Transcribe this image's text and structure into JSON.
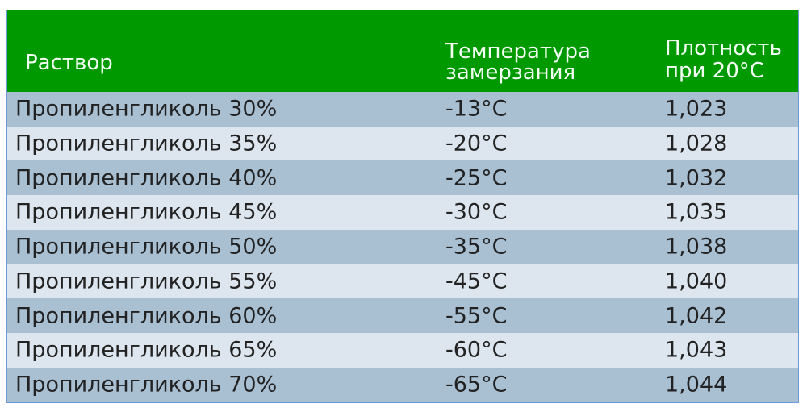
{
  "table": {
    "header_color": "#009a00",
    "row_colors": [
      "#a9bfd2",
      "#dde6ee"
    ],
    "columns": [
      {
        "line1": "Раствор",
        "line2": ""
      },
      {
        "line1": "Температура",
        "line2": "замерзания"
      },
      {
        "line1": "Плотность",
        "line2": "при 20°C"
      }
    ],
    "rows": [
      [
        "Пропиленгликоль 30%",
        "-13°C",
        "1,023"
      ],
      [
        "Пропиленгликоль 35%",
        "-20°C",
        "1,028"
      ],
      [
        "Пропиленгликоль 40%",
        "-25°C",
        "1,032"
      ],
      [
        "Пропиленгликоль 45%",
        "-30°C",
        "1,035"
      ],
      [
        "Пропиленгликоль 50%",
        "-35°C",
        "1,038"
      ],
      [
        "Пропиленгликоль 55%",
        "-45°C",
        "1,040"
      ],
      [
        "Пропиленгликоль 60%",
        "-55°C",
        "1,042"
      ],
      [
        "Пропиленгликоль 65%",
        "-60°C",
        "1,043"
      ],
      [
        "Пропиленгликоль 70%",
        "-65°C",
        "1,044"
      ]
    ]
  }
}
